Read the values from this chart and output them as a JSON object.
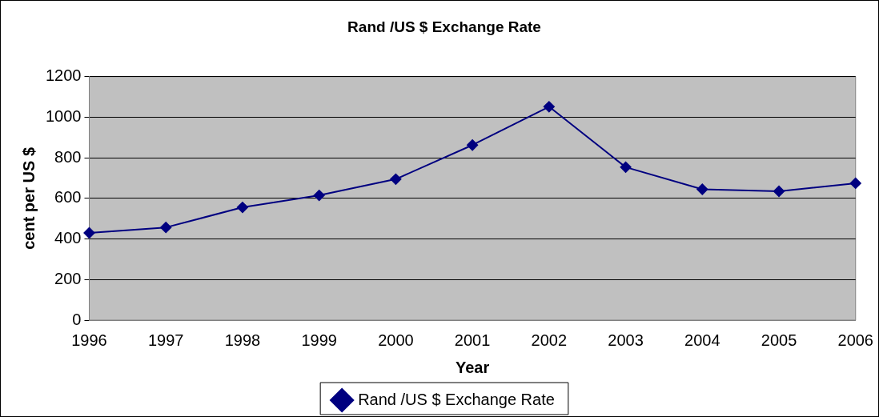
{
  "chart_data": {
    "type": "line",
    "title": "Rand /US $ Exchange Rate",
    "xlabel": "Year",
    "ylabel": "cent per US $",
    "categories": [
      "1996",
      "1997",
      "1998",
      "1999",
      "2000",
      "2001",
      "2002",
      "2003",
      "2004",
      "2005",
      "2006"
    ],
    "series": [
      {
        "name": "Rand /US $ Exchange Rate",
        "color": "#000080",
        "values": [
          430,
          457,
          556,
          615,
          695,
          863,
          1052,
          754,
          645,
          635,
          675
        ]
      }
    ],
    "ylim": [
      0,
      1200
    ],
    "yticks": [
      0,
      200,
      400,
      600,
      800,
      1000,
      1200
    ],
    "grid": "y",
    "legend": "bottom",
    "marker": "diamond",
    "line_style": "solid"
  }
}
